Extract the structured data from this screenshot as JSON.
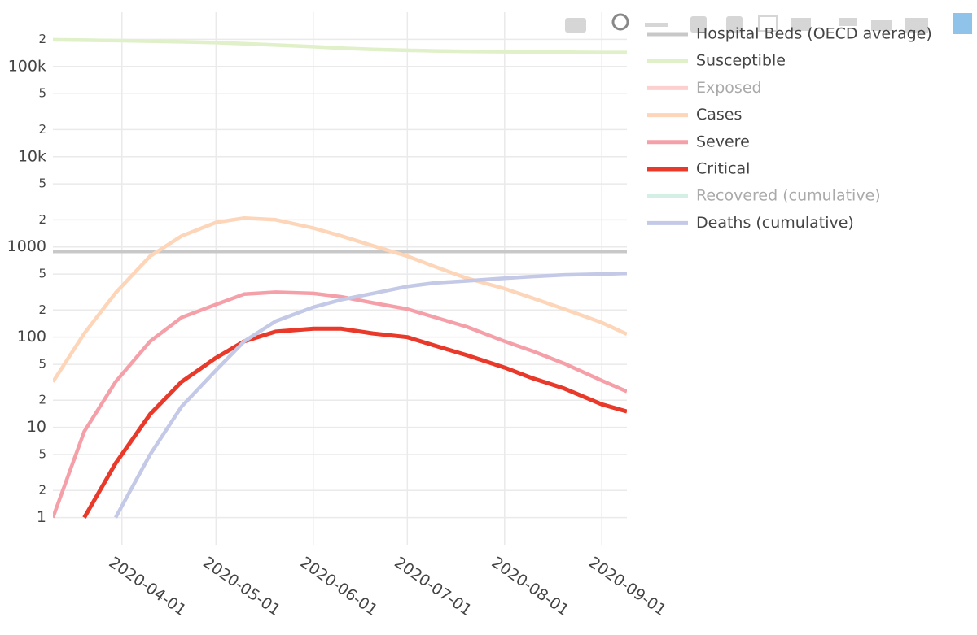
{
  "chart_data": {
    "type": "line",
    "log_y": true,
    "grid": true,
    "legend": "top-right",
    "x": [
      "2020-03-10",
      "2020-03-20",
      "2020-03-30",
      "2020-04-10",
      "2020-04-20",
      "2020-05-01",
      "2020-05-10",
      "2020-05-20",
      "2020-06-01",
      "2020-06-10",
      "2020-06-20",
      "2020-07-01",
      "2020-07-10",
      "2020-07-20",
      "2020-08-01",
      "2020-08-10",
      "2020-08-20",
      "2020-09-01",
      "2020-09-09"
    ],
    "xlim": [
      "2020-03-10",
      "2020-09-09"
    ],
    "xticks": [
      "2020-04-01",
      "2020-05-01",
      "2020-06-01",
      "2020-07-01",
      "2020-08-01",
      "2020-09-01"
    ],
    "ylim": [
      0.5,
      400000
    ],
    "yticks": [
      1,
      2,
      5,
      10,
      {
        "value": 20,
        "label": "2"
      },
      {
        "value": 50,
        "label": "5"
      },
      100,
      {
        "value": 200,
        "label": "2"
      },
      {
        "value": 500,
        "label": "5"
      },
      1000,
      {
        "value": 2000,
        "label": "2"
      },
      {
        "value": 5000,
        "label": "5"
      },
      {
        "value": 10000,
        "label": "10k"
      },
      {
        "value": 20000,
        "label": "2"
      },
      {
        "value": 50000,
        "label": "5"
      },
      {
        "value": 100000,
        "label": "100k"
      },
      {
        "value": 200000,
        "label": "2"
      }
    ],
    "series": [
      {
        "name": "Hospital Beds (OECD average)",
        "color": "#c8c8c8",
        "visible": true,
        "values": [
          890,
          890,
          890,
          890,
          890,
          890,
          890,
          890,
          890,
          890,
          890,
          890,
          890,
          890,
          890,
          890,
          890,
          890,
          890
        ]
      },
      {
        "name": "Susceptible",
        "color": "#e0f0c8",
        "visible": true,
        "values": [
          198000,
          196000,
          194000,
          191000,
          188000,
          184000,
          179000,
          173000,
          166000,
          160000,
          155000,
          151000,
          149000,
          147000,
          146000,
          145000,
          144000,
          143000,
          143000
        ]
      },
      {
        "name": "Exposed",
        "color": "#fdd0d0",
        "visible": false
      },
      {
        "name": "Cases",
        "color": "#fdd5b8",
        "visible": true,
        "values": [
          32,
          110,
          310,
          790,
          1320,
          1870,
          2090,
          2000,
          1620,
          1320,
          1030,
          790,
          600,
          450,
          345,
          270,
          205,
          145,
          108
        ]
      },
      {
        "name": "Severe",
        "color": "#f5a0a8",
        "visible": true,
        "values": [
          1,
          9,
          32,
          90,
          165,
          230,
          300,
          315,
          305,
          280,
          240,
          205,
          165,
          130,
          90,
          70,
          51,
          33,
          25
        ]
      },
      {
        "name": "Critical",
        "color": "#e8392a",
        "visible": true,
        "values": [
          null,
          1,
          4,
          14,
          32,
          59,
          90,
          115,
          124,
          124,
          110,
          100,
          80,
          63,
          46,
          35,
          27,
          18,
          15
        ]
      },
      {
        "name": "Recovered (cumulative)",
        "color": "#d4efe4",
        "visible": false
      },
      {
        "name": "Deaths (cumulative)",
        "color": "#c3c9e6",
        "visible": true,
        "values": [
          null,
          null,
          1,
          5,
          17,
          43,
          90,
          150,
          215,
          260,
          305,
          365,
          400,
          420,
          450,
          470,
          490,
          500,
          510
        ]
      }
    ]
  }
}
